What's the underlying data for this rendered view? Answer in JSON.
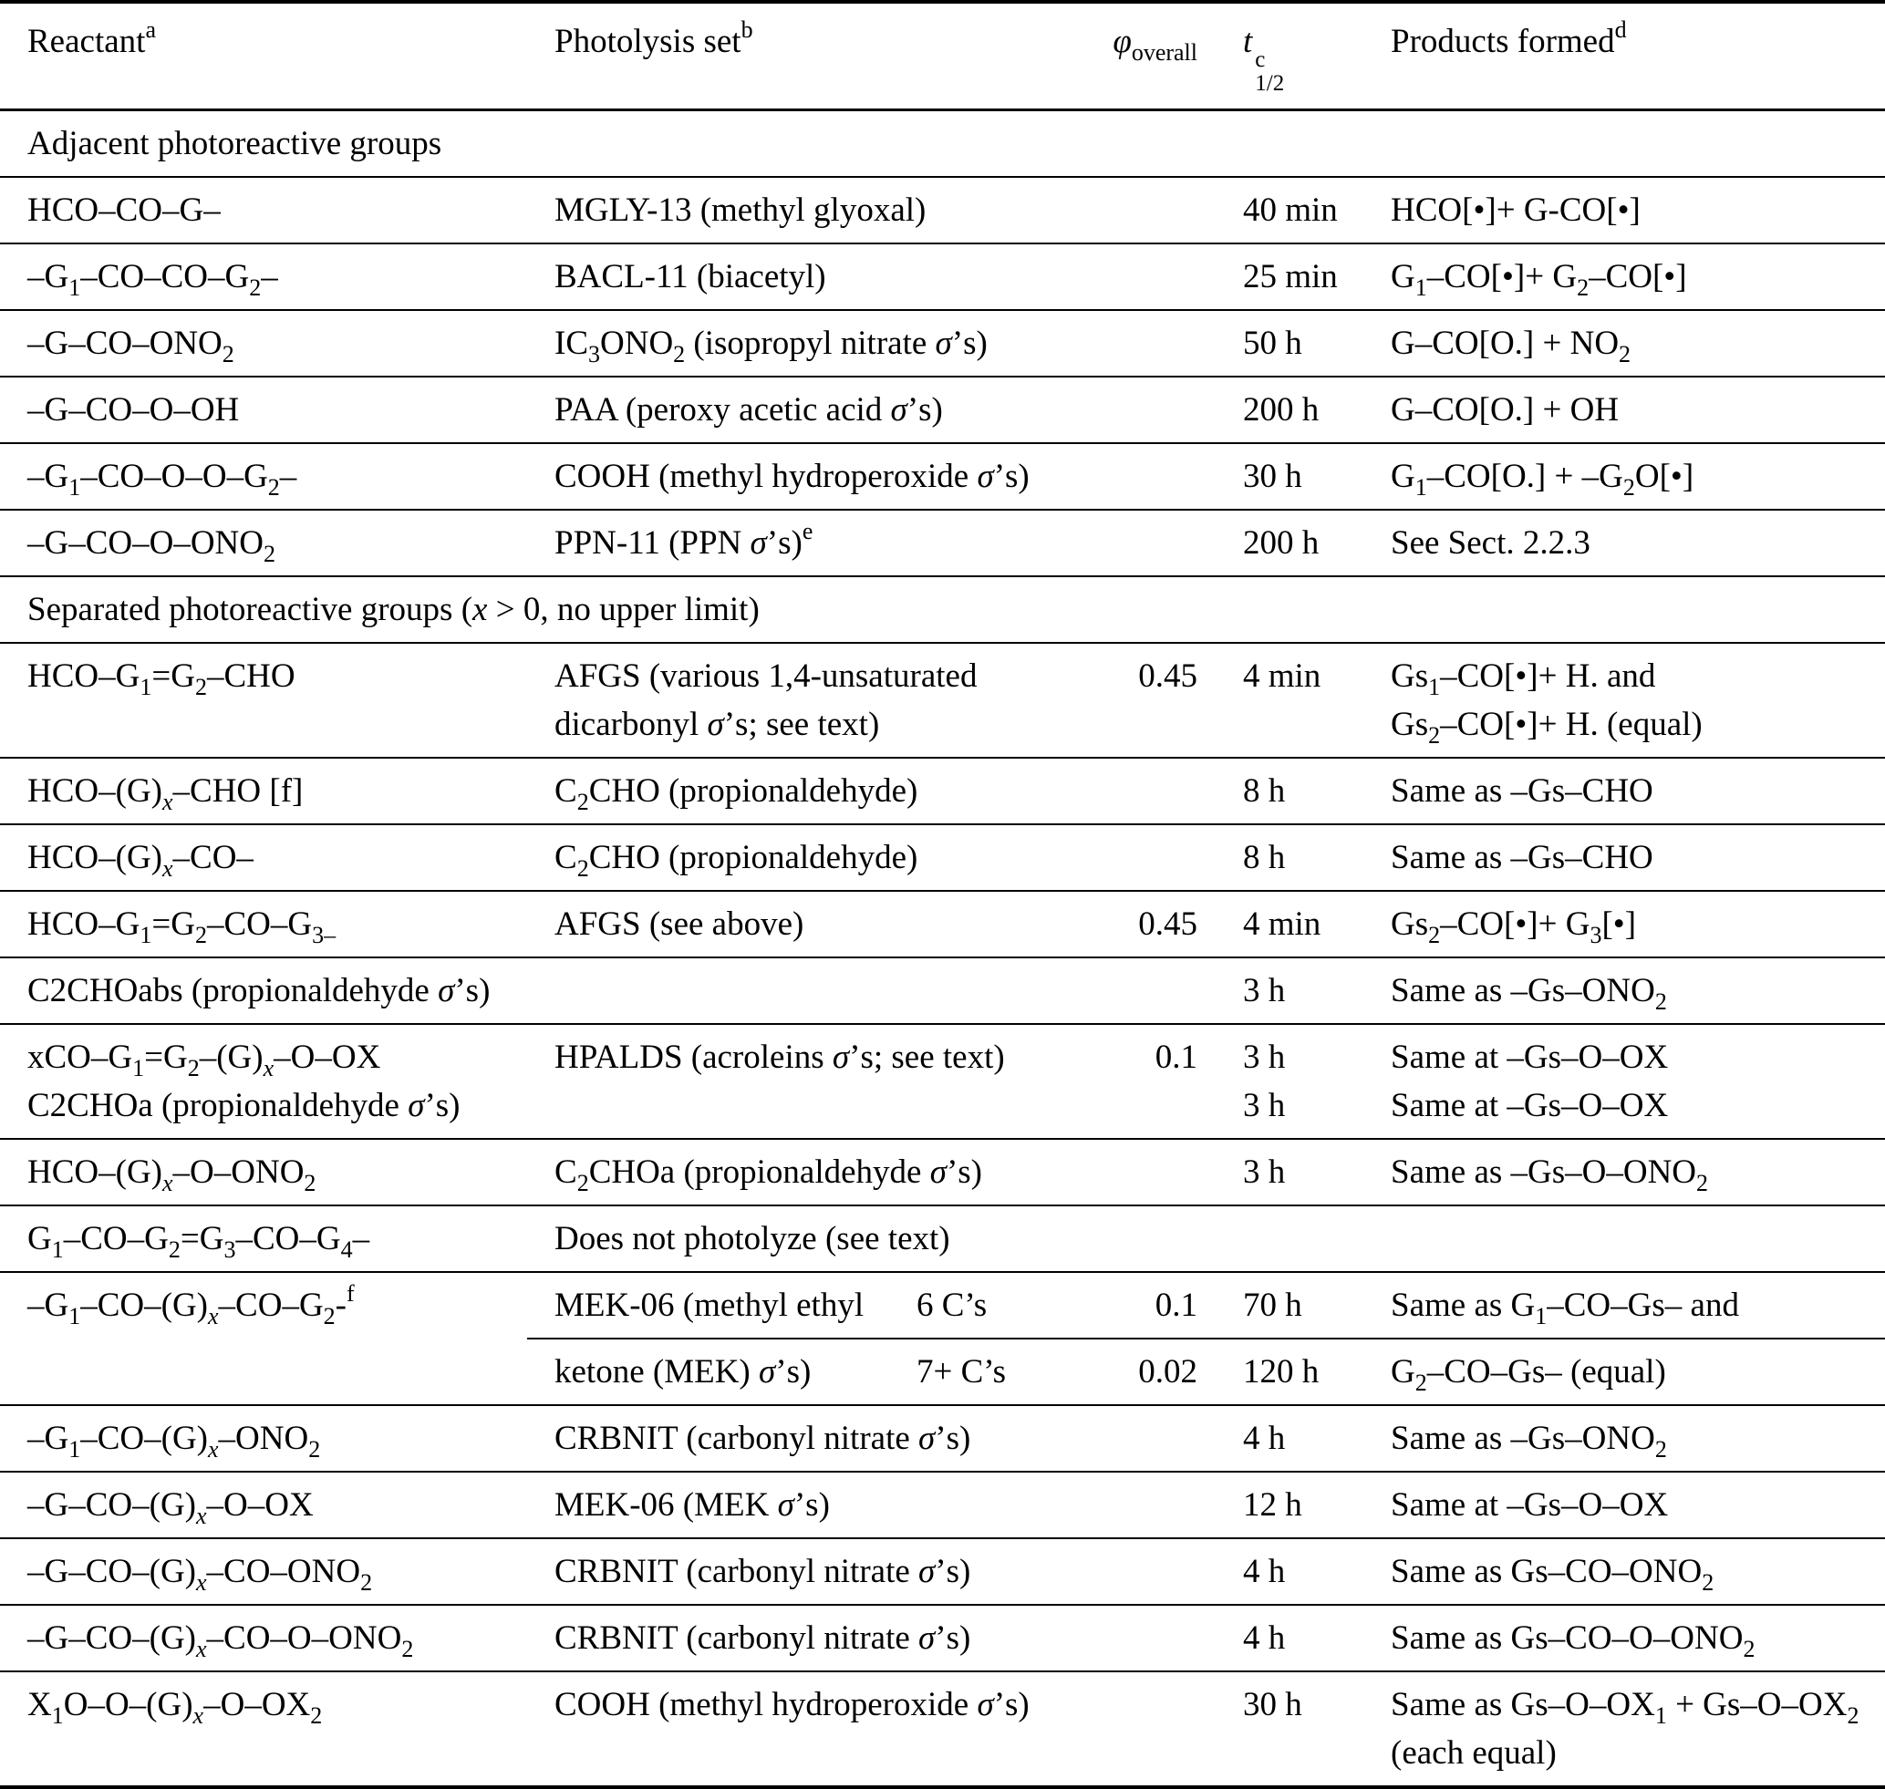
{
  "table": {
    "headers": {
      "reactant": "Reactant<sup>a</sup>",
      "photolysis": "Photolysis set<sup>b</sup>",
      "phi": "<i>φ</i><sub>overall</sub>",
      "thalf": "<i>t</i><span class=\"supsub\"><span class=\"ss-top\">c</span><span class=\"ss-bot\">1/2</span></span>",
      "products": "Products formed<sup>d</sup>"
    },
    "rows": [
      {
        "type": "section",
        "text_html": "Adjacent photoreactive groups"
      },
      {
        "type": "data",
        "reactant_html": "HCO–CO–G–",
        "photolysis_html": "MGLY-13 (methyl glyoxal)",
        "phi": "",
        "thalf_html": "40 min",
        "products_html": "HCO[•]+ G-CO[•]"
      },
      {
        "type": "data",
        "reactant_html": "–G<sub>1</sub>–CO–CO–G<sub>2</sub>–",
        "photolysis_html": "BACL-11 (biacetyl)",
        "phi": "",
        "thalf_html": "25 min",
        "products_html": "G<sub>1</sub>–CO[•]+ G<sub>2</sub>–CO[•]"
      },
      {
        "type": "data",
        "reactant_html": "–G–CO–ONO<sub>2</sub>",
        "photolysis_html": "IC<sub>3</sub>ONO<sub>2</sub> (isopropyl nitrate <i>σ</i>’s)",
        "phi": "",
        "thalf_html": "50 h",
        "products_html": "G–CO[O.] + NO<sub>2</sub>"
      },
      {
        "type": "data",
        "reactant_html": "–G–CO–O–OH",
        "photolysis_html": "PAA (peroxy acetic acid <i>σ</i>’s)",
        "phi": "",
        "thalf_html": "200 h",
        "products_html": "G–CO[O.] + OH"
      },
      {
        "type": "data",
        "reactant_html": "–G<sub>1</sub>–CO–O–O–G<sub>2</sub>–",
        "photolysis_html": "COOH (methyl hydroperoxide <i>σ</i>’s)",
        "phi": "",
        "thalf_html": "30 h",
        "products_html": "G<sub>1</sub>–CO[O.] + –G<sub>2</sub>O[•]"
      },
      {
        "type": "data",
        "reactant_html": "–G–CO–O–ONO<sub>2</sub>",
        "photolysis_html": "PPN-11 (PPN <i>σ</i>’s)<sup>e</sup>",
        "phi": "",
        "thalf_html": "200 h",
        "products_html": "See Sect. 2.2.3"
      },
      {
        "type": "section",
        "text_html": "Separated photoreactive groups (<i>x</i> &gt; 0, no upper limit)"
      },
      {
        "type": "data",
        "reactant_html": "HCO–G<sub>1</sub>=G<sub>2</sub>–CHO",
        "photolysis_html": "AFGS (various 1,4-unsaturated<br>dicarbonyl <i>σ</i>’s; see text)",
        "phi": "0.45",
        "thalf_html": "4 min",
        "products_html": "Gs<sub>1</sub>–CO[•]+ H. and<br>Gs<sub>2</sub>–CO[•]+ H. (equal)"
      },
      {
        "type": "data",
        "reactant_html": "HCO–(G)<sub><i>x</i></sub>–CHO [f]",
        "photolysis_html": "C<sub>2</sub>CHO (propionaldehyde)",
        "phi": "",
        "thalf_html": "8 h",
        "products_html": "Same as –Gs–CHO"
      },
      {
        "type": "data",
        "reactant_html": "HCO–(G)<sub><i>x</i></sub>–CO–",
        "photolysis_html": "C<sub>2</sub>CHO (propionaldehyde)",
        "phi": "",
        "thalf_html": "8 h",
        "products_html": "Same as –Gs–CHO"
      },
      {
        "type": "data",
        "reactant_html": "HCO–G<sub>1</sub>=G<sub>2</sub>–CO–G<sub>3</sub><sub>–</sub>",
        "photolysis_html": "AFGS (see above)",
        "phi": "0.45",
        "thalf_html": "4 min",
        "products_html": "Gs<sub>2</sub>–CO[•]+ G<sub>3</sub>[•]"
      },
      {
        "type": "data",
        "reactant_html": "C2CHOabs (propionaldehyde <i>σ</i>’s)",
        "photolysis_html": "",
        "phi": "",
        "thalf_html": "3 h",
        "products_html": "Same as –Gs–ONO<sub>2</sub>"
      },
      {
        "type": "data",
        "reactant_html": "xCO–G<sub>1</sub>=G<sub>2</sub>–(G)<sub><i>x</i></sub>–O–OX<br>C2CHOa (propionaldehyde <i>σ</i>’s)",
        "photolysis_html": "HPALDS (acroleins <i>σ</i>’s; see text)",
        "phi": "0.1",
        "thalf_html": "3 h<br>3 h",
        "products_html": "Same at –Gs–O–OX<br>Same at –Gs–O–OX"
      },
      {
        "type": "data",
        "reactant_html": "HCO–(G)<sub><i>x</i></sub>–O–ONO<sub>2</sub>",
        "photolysis_html": "C<sub>2</sub>CHOa (propionaldehyde <i>σ</i>’s)",
        "phi": "",
        "thalf_html": "3 h",
        "products_html": "Same as –Gs–O–ONO<sub>2</sub>"
      },
      {
        "type": "data",
        "reactant_html": "G<sub>1</sub>–CO–G<sub>2</sub>=G<sub>3</sub>–CO–G<sub>4</sub>–",
        "photolysis_html": "Does not photolyze (see text)",
        "phi": "",
        "thalf_html": "",
        "products_html": ""
      },
      {
        "type": "data",
        "rowspan_start": true,
        "reactant_html": "–G<sub>1</sub>–CO–(G)<sub><i>x</i></sub>–CO–G<sub>2</sub>-<sup>f</sup>",
        "photolysis_html": "MEK-06 (methyl ethyl",
        "subcol_html": "6 C’s",
        "phi": "0.1",
        "thalf_html": "70 h",
        "products_html": "Same as G<sub>1</sub>–CO–Gs– and"
      },
      {
        "type": "data",
        "in_rowspan": true,
        "photolysis_html": "ketone (MEK) <i>σ</i>’s)",
        "subcol_html": "7+ C’s",
        "phi": "0.02",
        "thalf_html": "120 h",
        "products_html": "G<sub>2</sub>–CO–Gs– (equal)"
      },
      {
        "type": "data",
        "reactant_html": "–G<sub>1</sub>–CO–(G)<sub><i>x</i></sub>–ONO<sub>2</sub>",
        "photolysis_html": "CRBNIT (carbonyl nitrate <i>σ</i>’s)",
        "phi": "",
        "thalf_html": "4 h",
        "products_html": "Same as –Gs–ONO<sub>2</sub>"
      },
      {
        "type": "data",
        "reactant_html": "–G–CO–(G)<sub><i>x</i></sub>–O–OX",
        "photolysis_html": "MEK-06 (MEK <i>σ</i>’s)",
        "phi": "",
        "thalf_html": "12 h",
        "products_html": "Same at –Gs–O–OX"
      },
      {
        "type": "data",
        "reactant_html": "–G–CO–(G)<sub><i>x</i></sub>–CO–ONO<sub>2</sub>",
        "photolysis_html": "CRBNIT (carbonyl nitrate <i>σ</i>’s)",
        "phi": "",
        "thalf_html": "4 h",
        "products_html": "Same as Gs–CO–ONO<sub>2</sub>"
      },
      {
        "type": "data",
        "reactant_html": "–G–CO–(G)<sub><i>x</i></sub>–CO–O–ONO<sub>2</sub>",
        "photolysis_html": "CRBNIT (carbonyl nitrate <i>σ</i>’s)",
        "phi": "",
        "thalf_html": "4 h",
        "products_html": "Same as Gs–CO–O–ONO<sub>2</sub>"
      },
      {
        "type": "data",
        "reactant_html": "X<sub>1</sub>O–O–(G)<sub><i>x</i></sub>–O–OX<sub>2</sub>",
        "photolysis_html": "COOH (methyl hydroperoxide <i>σ</i>’s)",
        "phi": "",
        "thalf_html": "30 h",
        "products_html": "Same as Gs–O–OX<sub>1</sub> + Gs–O–OX<sub>2</sub><br>(each equal)"
      }
    ]
  }
}
